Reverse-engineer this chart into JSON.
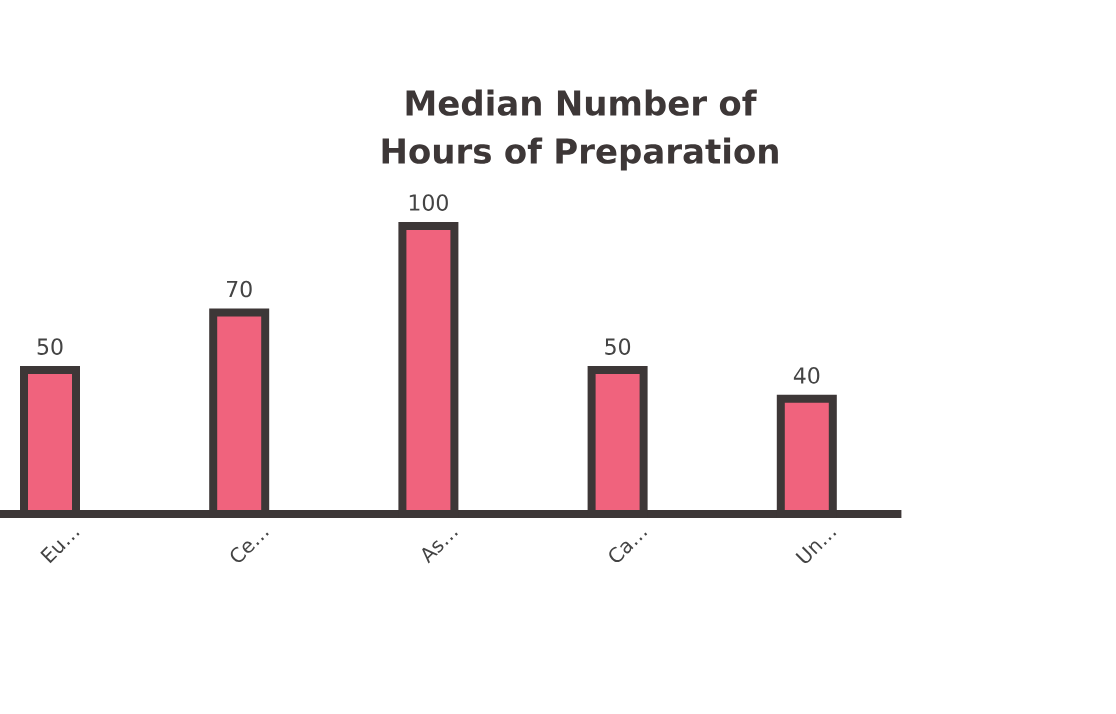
{
  "chart_data": {
    "type": "bar",
    "title": "Median Number of\nHours of Preparation",
    "categories": [
      "Eu…",
      "Ce…",
      "As…",
      "Ca…",
      "Un…"
    ],
    "values": [
      50,
      70,
      100,
      50,
      40
    ],
    "color": "#f0637d",
    "data_labels": true
  }
}
